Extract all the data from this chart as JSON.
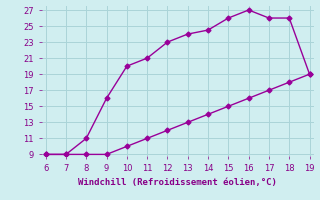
{
  "xlabel": "Windchill (Refroidissement éolien,°C)",
  "x_upper": [
    6,
    7,
    8,
    9,
    10,
    11,
    12,
    13,
    14,
    15,
    16,
    17,
    18,
    19
  ],
  "y_upper": [
    9,
    9,
    11,
    16,
    20,
    21,
    23,
    24,
    24.5,
    26,
    27,
    26,
    26,
    19
  ],
  "x_lower": [
    6,
    7,
    8,
    9,
    10,
    11,
    12,
    13,
    14,
    15,
    16,
    17,
    18,
    19
  ],
  "y_lower": [
    9,
    9,
    9,
    9,
    10,
    11,
    12,
    13,
    14,
    15,
    16,
    17,
    18,
    19
  ],
  "xlim": [
    6,
    19
  ],
  "ylim": [
    9,
    27
  ],
  "xticks": [
    6,
    7,
    8,
    9,
    10,
    11,
    12,
    13,
    14,
    15,
    16,
    17,
    18,
    19
  ],
  "yticks": [
    9,
    11,
    13,
    15,
    17,
    19,
    21,
    23,
    25,
    27
  ],
  "line_color": "#990099",
  "marker": "D",
  "marker_size": 2.5,
  "bg_color": "#d0eef0",
  "grid_color": "#aad4d8",
  "label_color": "#880088",
  "tick_color": "#880088",
  "font_size_axis": 6.5,
  "font_size_ticks": 6,
  "linewidth": 1.0
}
